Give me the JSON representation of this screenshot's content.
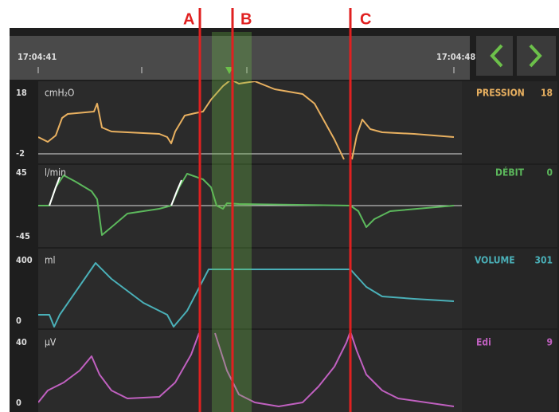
{
  "markers": [
    "A",
    "B",
    "C"
  ],
  "timeline": {
    "start": "17:04:41",
    "end": "17:04:48"
  },
  "panels": [
    {
      "unit": "cmH₂O",
      "max": 18,
      "min": -2,
      "label": "PRESSION",
      "value": 18
    },
    {
      "unit": "l/min",
      "max": 45,
      "min": -45,
      "label": "DÉBIT",
      "value": 0
    },
    {
      "unit": "ml",
      "max": 400,
      "min": 0,
      "label": "VOLUME",
      "value": 301
    },
    {
      "unit": "μV",
      "max": 40,
      "min": 0,
      "label": "Edi",
      "value": 9
    }
  ]
}
